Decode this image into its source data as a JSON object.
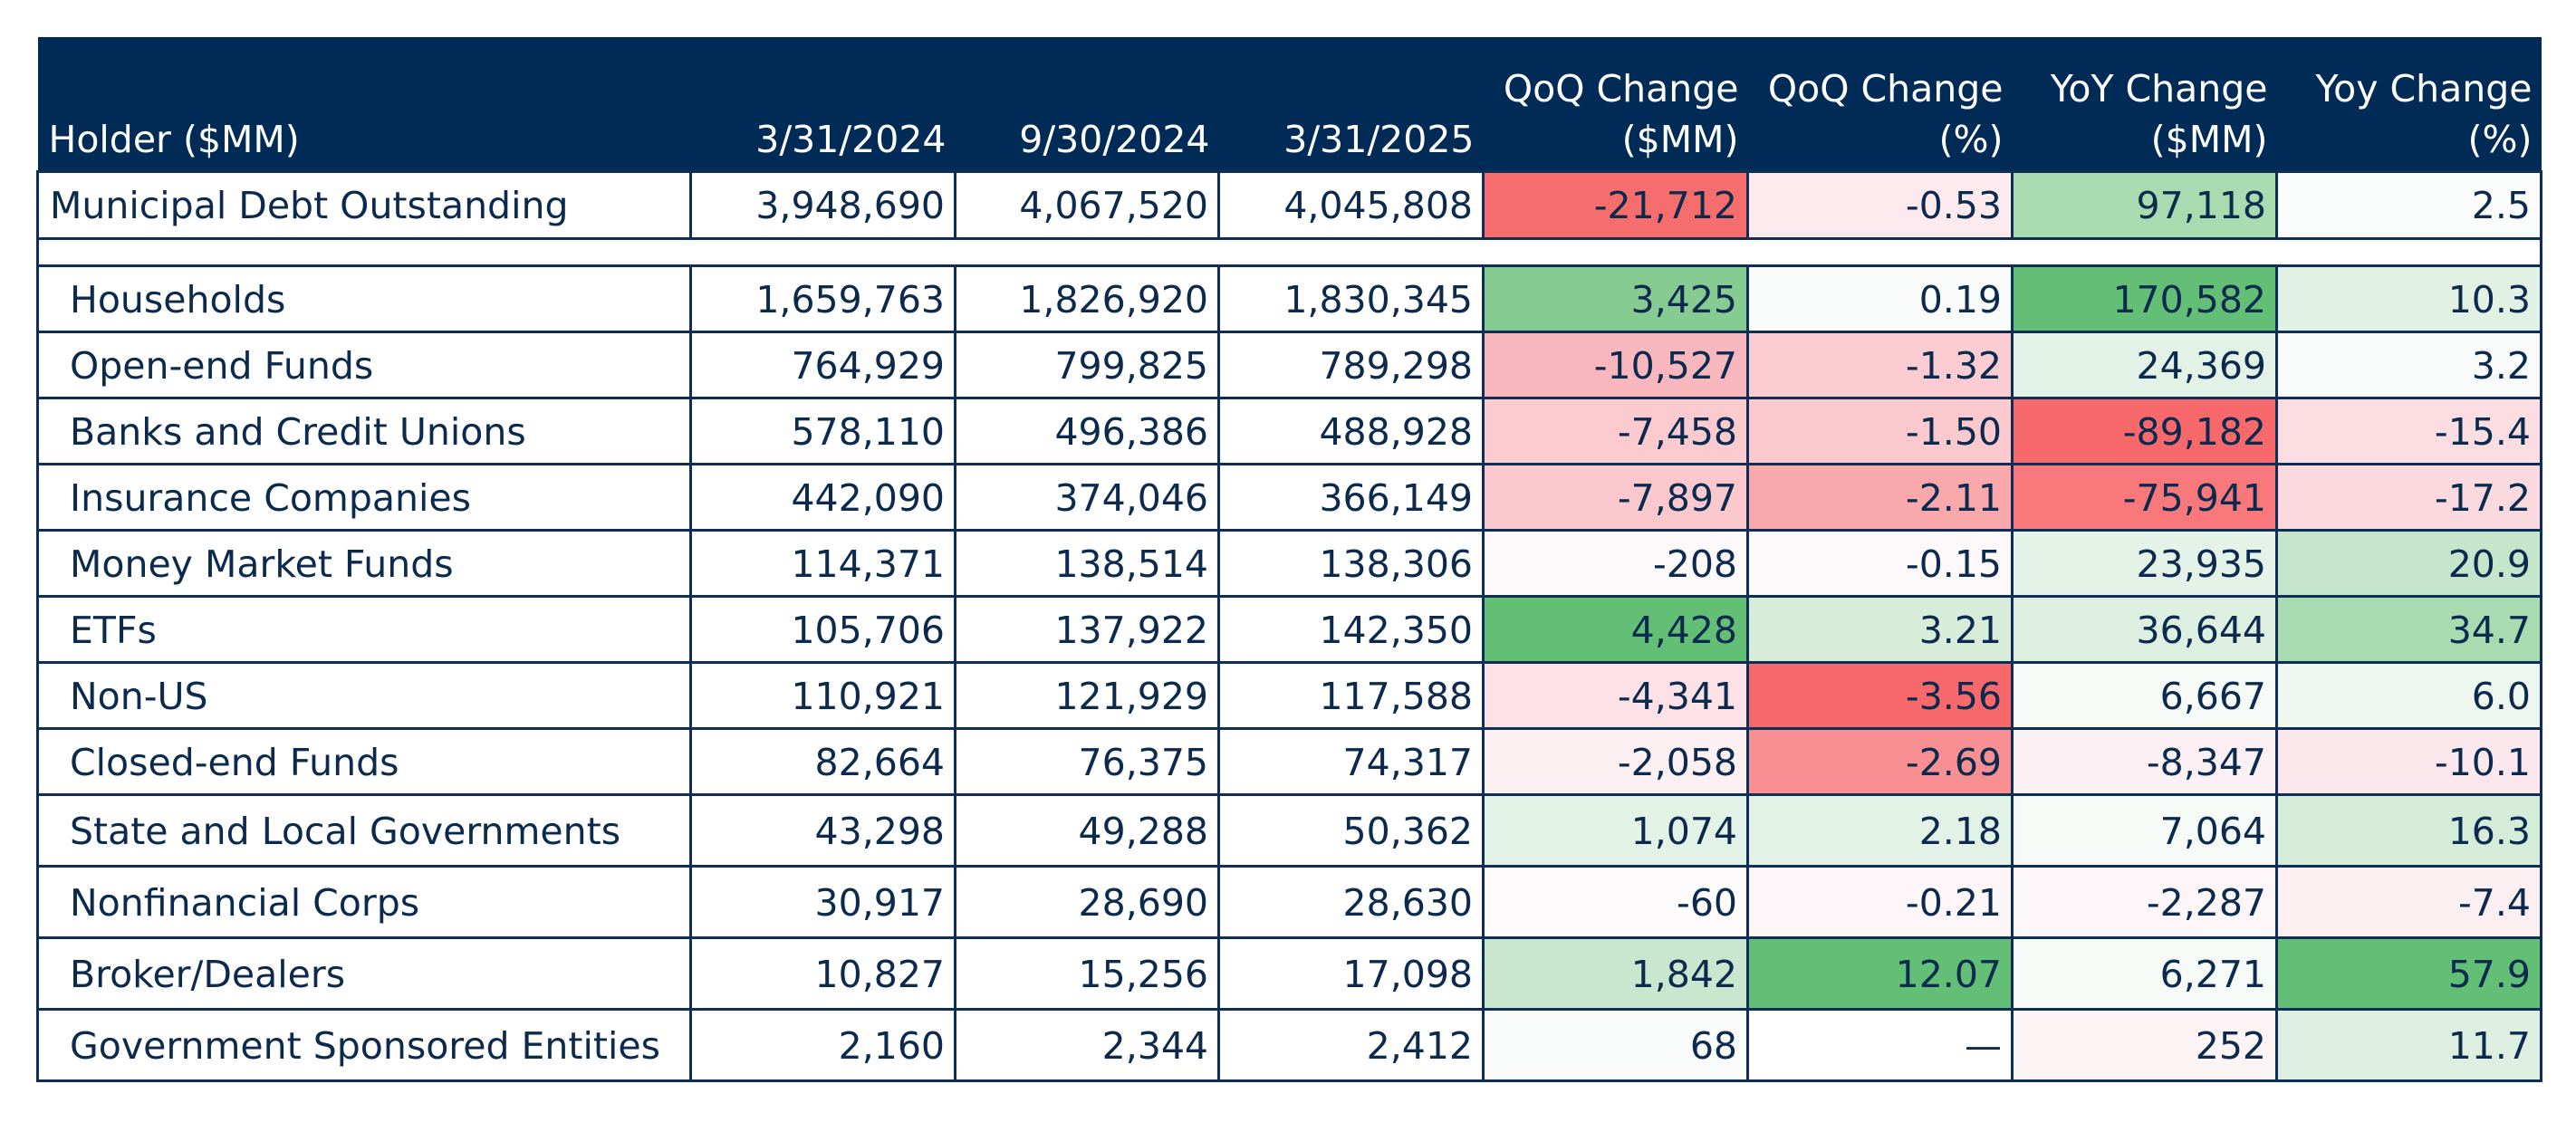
{
  "chart_data": {
    "type": "table",
    "columns": [
      "Holder ($MM)",
      "3/31/2024",
      "9/30/2024",
      "3/31/2025",
      "QoQ Change ($MM)",
      "QoQ Change (%)",
      "YoY Change ($MM)",
      "Yoy Change (%)"
    ],
    "header": {
      "holder": "Holder ($MM)",
      "d1": "3/31/2024",
      "d2": "9/30/2024",
      "d3": "3/31/2025",
      "qoq_mm_l1": "QoQ Change",
      "qoq_mm_l2": "($MM)",
      "qoq_pct_l1": "QoQ Change",
      "qoq_pct_l2": "(%)",
      "yoy_mm_l1": "YoY Change",
      "yoy_mm_l2": "($MM)",
      "yoy_pct_l1": "Yoy Change",
      "yoy_pct_l2": "(%)"
    },
    "total": {
      "holder": "Municipal Debt Outstanding",
      "v_2024_03": "3,948,690",
      "v_2024_09": "4,067,520",
      "v_2025_03": "4,045,808",
      "qoq_mm": "-21,712",
      "qoq_pct": "-0.53",
      "yoy_mm": "97,118",
      "yoy_pct": "2.5",
      "colors": [
        "#ffffff",
        "#ffffff",
        "#ffffff",
        "#ffffff",
        "#f66d6e",
        "#fdeaee",
        "#a9dbb0",
        "#fbfdfc"
      ]
    },
    "rows": [
      {
        "holder": "Households",
        "v_2024_03": "1,659,763",
        "v_2024_09": "1,826,920",
        "v_2025_03": "1,830,345",
        "qoq_mm": "3,425",
        "qoq_pct": "0.19",
        "yoy_mm": "170,582",
        "yoy_pct": "10.3",
        "colors": [
          "#ffffff",
          "#ffffff",
          "#ffffff",
          "#ffffff",
          "#86cb91",
          "#f8fbfa",
          "#63be76",
          "#e1f1e4"
        ]
      },
      {
        "holder": "Open-end Funds",
        "v_2024_03": "764,929",
        "v_2024_09": "799,825",
        "v_2025_03": "789,298",
        "qoq_mm": "-10,527",
        "qoq_pct": "-1.32",
        "yoy_mm": "24,369",
        "yoy_pct": "3.2",
        "colors": [
          "#ffffff",
          "#ffffff",
          "#ffffff",
          "#ffffff",
          "#f9b8bd",
          "#fbcdd2",
          "#e3f2e6",
          "#f8fbfa"
        ]
      },
      {
        "holder": "Banks and Credit Unions",
        "v_2024_03": "578,110",
        "v_2024_09": "496,386",
        "v_2025_03": "488,928",
        "qoq_mm": "-7,458",
        "qoq_pct": "-1.50",
        "yoy_mm": "-89,182",
        "yoy_pct": "-15.4",
        "colors": [
          "#ffffff",
          "#ffffff",
          "#ffffff",
          "#ffffff",
          "#fbcbd0",
          "#fbc9ce",
          "#f8696b",
          "#fcdde2"
        ]
      },
      {
        "holder": "Insurance Companies",
        "v_2024_03": "442,090",
        "v_2024_09": "374,046",
        "v_2025_03": "366,149",
        "qoq_mm": "-7,897",
        "qoq_pct": "-2.11",
        "yoy_mm": "-75,941",
        "yoy_pct": "-17.2",
        "colors": [
          "#ffffff",
          "#ffffff",
          "#ffffff",
          "#ffffff",
          "#fbc8cd",
          "#f9a8ac",
          "#f8787b",
          "#fbdadf"
        ]
      },
      {
        "holder": "Money Market Funds",
        "v_2024_03": "114,371",
        "v_2024_09": "138,514",
        "v_2025_03": "138,306",
        "qoq_mm": "-208",
        "qoq_pct": "-0.15",
        "yoy_mm": "23,935",
        "yoy_pct": "20.9",
        "colors": [
          "#ffffff",
          "#ffffff",
          "#ffffff",
          "#ffffff",
          "#fdf8f9",
          "#fdf8f9",
          "#e4f2e7",
          "#c6e6cb"
        ]
      },
      {
        "holder": "ETFs",
        "v_2024_03": "105,706",
        "v_2024_09": "137,922",
        "v_2025_03": "142,350",
        "qoq_mm": "4,428",
        "qoq_pct": "3.21",
        "yoy_mm": "36,644",
        "yoy_pct": "34.7",
        "colors": [
          "#ffffff",
          "#ffffff",
          "#ffffff",
          "#ffffff",
          "#63be76",
          "#d7edd9",
          "#dcefe0",
          "#a9dbb0"
        ]
      },
      {
        "holder": "Non-US",
        "v_2024_03": "110,921",
        "v_2024_09": "121,929",
        "v_2025_03": "117,588",
        "qoq_mm": "-4,341",
        "qoq_pct": "-3.56",
        "yoy_mm": "6,667",
        "yoy_pct": "6.0",
        "colors": [
          "#ffffff",
          "#ffffff",
          "#ffffff",
          "#ffffff",
          "#fce1e6",
          "#f8696b",
          "#f5faf6",
          "#eef7f0"
        ]
      },
      {
        "holder": "Closed-end Funds",
        "v_2024_03": "82,664",
        "v_2024_09": "76,375",
        "v_2025_03": "74,317",
        "qoq_mm": "-2,058",
        "qoq_pct": "-2.69",
        "yoy_mm": "-8,347",
        "yoy_pct": "-10.1",
        "colors": [
          "#ffffff",
          "#ffffff",
          "#ffffff",
          "#ffffff",
          "#fcf0f3",
          "#f88f92",
          "#fbf1f4",
          "#fce8ec"
        ]
      },
      {
        "holder": "State and Local Governments",
        "v_2024_03": "43,298",
        "v_2024_09": "49,288",
        "v_2025_03": "50,362",
        "qoq_mm": "1,074",
        "qoq_pct": "2.18",
        "yoy_mm": "7,064",
        "yoy_pct": "16.3",
        "colors": [
          "#ffffff",
          "#ffffff",
          "#ffffff",
          "#ffffff",
          "#e3f2e6",
          "#e3f2e6",
          "#f5faf6",
          "#d4ecd8"
        ]
      },
      {
        "holder": "Nonfinancial Corps",
        "v_2024_03": "30,917",
        "v_2024_09": "28,690",
        "v_2025_03": "28,630",
        "qoq_mm": "-60",
        "qoq_pct": "-0.21",
        "yoy_mm": "-2,287",
        "yoy_pct": "-7.4",
        "colors": [
          "#ffffff",
          "#ffffff",
          "#ffffff",
          "#ffffff",
          "#fdfbfc",
          "#fdf6f8",
          "#fdf6f8",
          "#fceff2"
        ]
      },
      {
        "holder": "Broker/Dealers",
        "v_2024_03": "10,827",
        "v_2024_09": "15,256",
        "v_2025_03": "17,098",
        "qoq_mm": "1,842",
        "qoq_pct": "12.07",
        "yoy_mm": "6,271",
        "yoy_pct": "57.9",
        "colors": [
          "#ffffff",
          "#ffffff",
          "#ffffff",
          "#ffffff",
          "#c9e7ce",
          "#63be76",
          "#f5faf6",
          "#63be76"
        ]
      },
      {
        "holder": "Government Sponsored Entities",
        "v_2024_03": "2,160",
        "v_2024_09": "2,344",
        "v_2025_03": "2,412",
        "qoq_mm": "68",
        "qoq_pct": "—",
        "yoy_mm": "252",
        "yoy_pct": "11.7",
        "colors": [
          "#ffffff",
          "#ffffff",
          "#ffffff",
          "#ffffff",
          "#f8fbfa",
          "#ffffff",
          "#fdf4f6",
          "#dcefe0"
        ]
      }
    ]
  }
}
